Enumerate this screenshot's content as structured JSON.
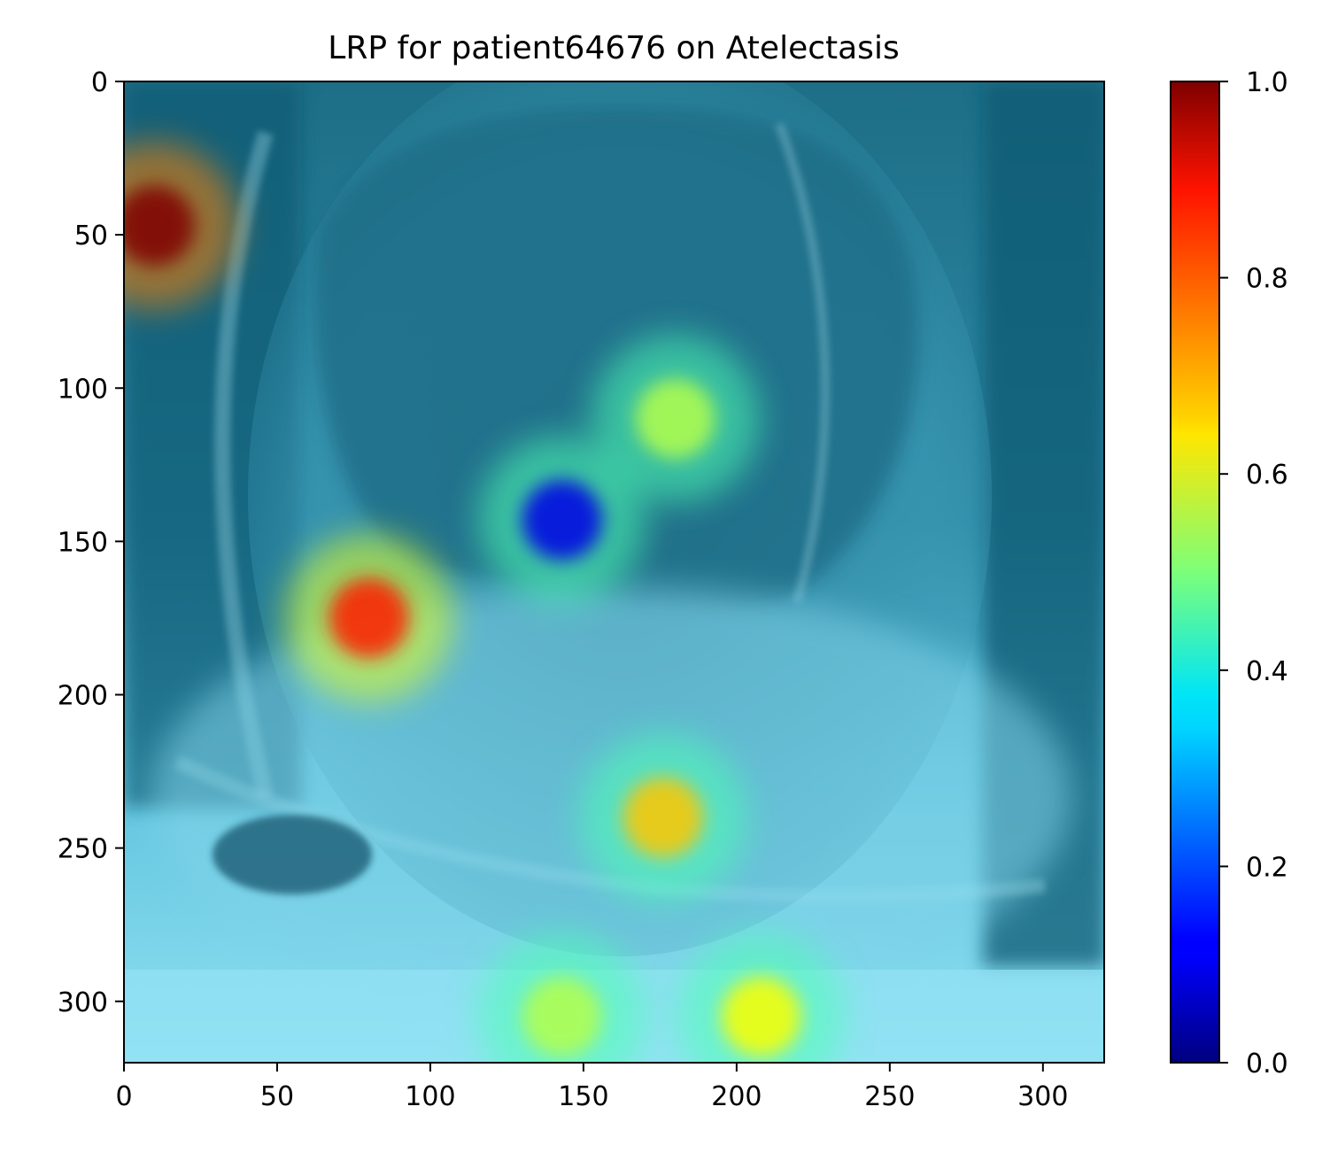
{
  "chart_data": {
    "type": "heatmap",
    "title": "LRP for patient64676 on Atelectasis",
    "xlabel": "",
    "ylabel": "",
    "xlim": [
      0,
      320
    ],
    "ylim": [
      320,
      0
    ],
    "x_ticks": [
      0,
      50,
      100,
      150,
      200,
      250,
      300
    ],
    "y_ticks": [
      0,
      50,
      100,
      150,
      200,
      250,
      300
    ],
    "colorbar": {
      "colormap": "jet",
      "range": [
        0.0,
        1.0
      ],
      "ticks": [
        "0.0",
        "0.2",
        "0.4",
        "0.6",
        "0.8",
        "1.0"
      ]
    },
    "hotspots": [
      {
        "x": 10,
        "y": 47,
        "value": 1.0
      },
      {
        "x": 80,
        "y": 175,
        "value": 0.85
      },
      {
        "x": 143,
        "y": 143,
        "value": 0.1
      },
      {
        "x": 176,
        "y": 240,
        "value": 0.68
      },
      {
        "x": 208,
        "y": 305,
        "value": 0.62
      },
      {
        "x": 143,
        "y": 305,
        "value": 0.55
      },
      {
        "x": 180,
        "y": 110,
        "value": 0.55
      }
    ]
  }
}
